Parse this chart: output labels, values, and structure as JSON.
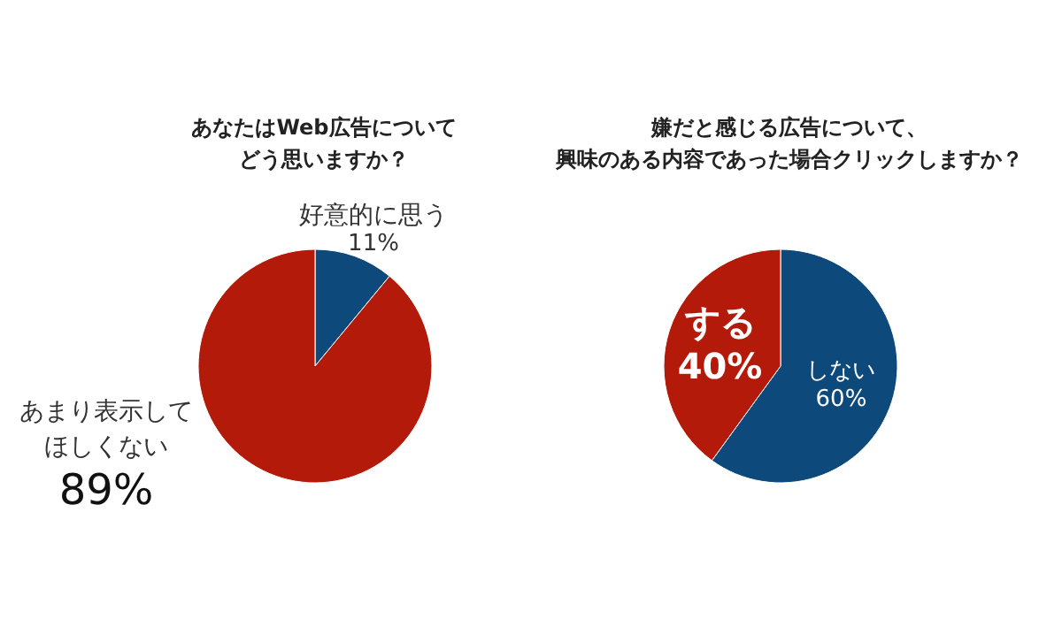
{
  "chart_data": [
    {
      "type": "pie",
      "title": "あなたはWeb広告についてどう思いますか？",
      "categories": [
        "好意的に思う",
        "あまり表示してほしくない"
      ],
      "values": [
        11,
        89
      ],
      "colors": [
        "#0d4a7b",
        "#b31a0a"
      ],
      "value_labels": [
        "11%",
        "89%"
      ]
    },
    {
      "type": "pie",
      "title": "嫌だと感じる広告について、興味のある内容であった場合クリックしますか？",
      "categories": [
        "しない",
        "する"
      ],
      "values": [
        60,
        40
      ],
      "colors": [
        "#0d4a7b",
        "#b31a0a"
      ],
      "value_labels": [
        "60%",
        "40%"
      ]
    }
  ]
}
